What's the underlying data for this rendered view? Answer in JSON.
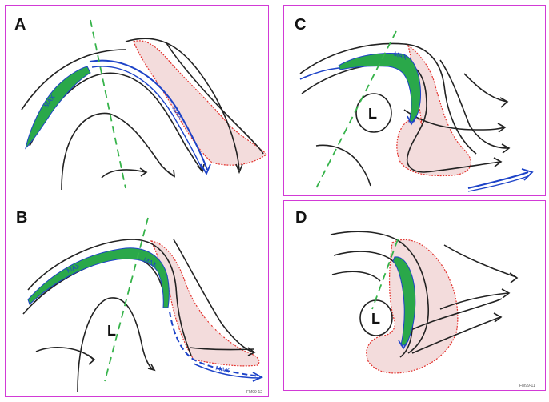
{
  "panels": [
    {
      "label": "A",
      "low_label": "",
      "max_labels": [
        "MAX",
        "MAX"
      ]
    },
    {
      "label": "B",
      "low_label": "L",
      "max_labels": [
        "MAX",
        "MAX",
        "MAX"
      ]
    },
    {
      "label": "C",
      "low_label": "L",
      "max_labels": [
        "MAX"
      ]
    },
    {
      "label": "D",
      "low_label": "L",
      "max_labels": []
    }
  ],
  "credits": {
    "left": "FM99-12",
    "right": "FM99-11"
  },
  "colors": {
    "border": "#d23ad6",
    "jet_fill": "#2aa84a",
    "jet_edge": "#1d43c8",
    "cloud_edge": "#e3342f",
    "cloud_fill": "#f3dcdc",
    "trough_axis": "#36b34a",
    "streamline": "#222222"
  }
}
